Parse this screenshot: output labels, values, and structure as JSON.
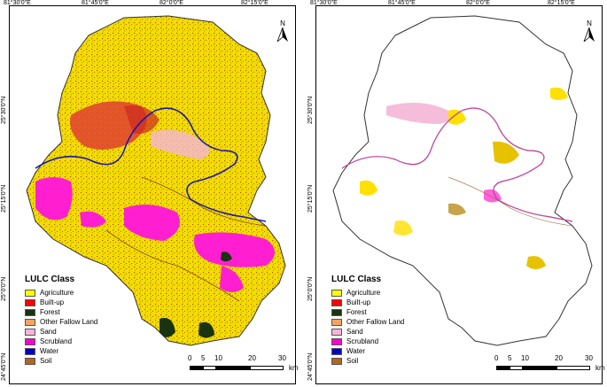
{
  "axes": {
    "top_ticks": [
      "81°30'0\"E",
      "81°45'0\"E",
      "82°0'0\"E",
      "82°15'0\"E"
    ],
    "left_ticks": [
      "25°30'0\"N",
      "25°15'0\"N",
      "25°0'0\"N",
      "24°45'0\"N"
    ]
  },
  "north_label": "N",
  "legend": {
    "title": "LULC Class",
    "classes": [
      {
        "label": "Agriculture",
        "color": "#ffff00"
      },
      {
        "label": "Built-up",
        "color": "#ff0000"
      },
      {
        "label": "Forest",
        "color": "#1a3310"
      },
      {
        "label": "Other Fallow Land",
        "color": "#f4a460"
      },
      {
        "label": "Sand",
        "color": "#f4b6d6"
      },
      {
        "label": "Scrubland",
        "color": "#ff00cc"
      },
      {
        "label": "Water",
        "color": "#0000cc"
      },
      {
        "label": "Soil",
        "color": "#b5651d"
      }
    ]
  },
  "scale_bar": {
    "ticks": [
      "0",
      "5",
      "10",
      "20",
      "30"
    ],
    "unit": "km"
  },
  "colors": {
    "base_fill": "#f2dd00",
    "dark_speckle": "#b3541e",
    "builtup": "#e04030",
    "scrub": "#ff1fd0",
    "river": "#1a1aa8"
  }
}
